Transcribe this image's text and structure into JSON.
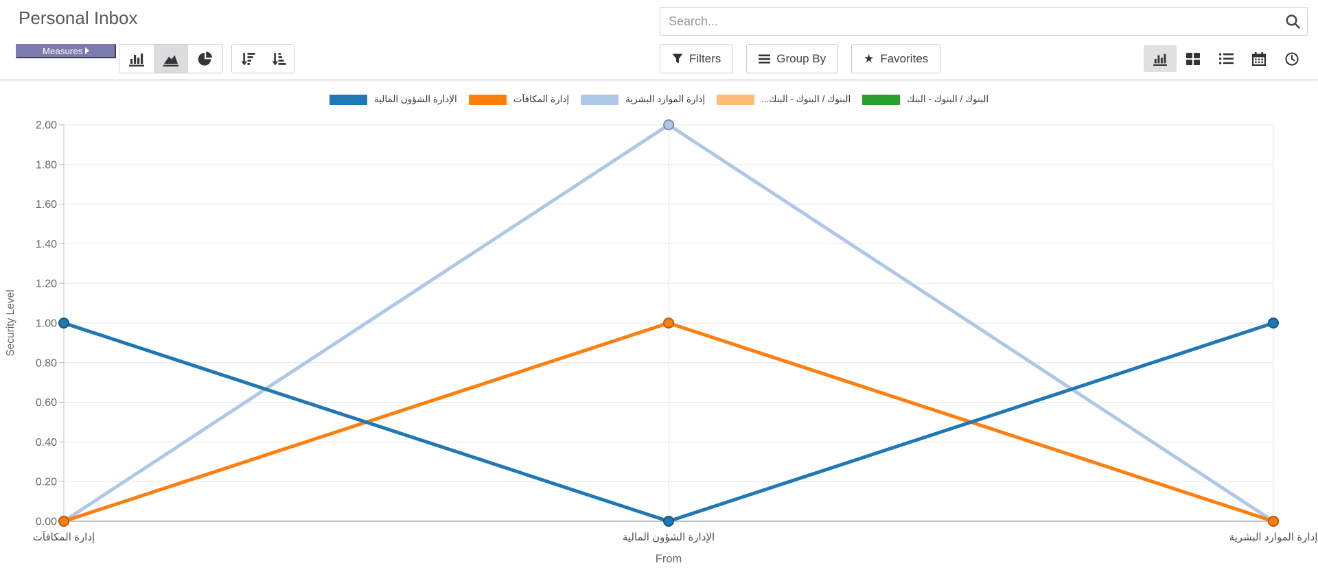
{
  "header": {
    "title": "Personal Inbox",
    "search_placeholder": "Search..."
  },
  "toolbar": {
    "measures_label": "Measures",
    "filters_label": "Filters",
    "group_by_label": "Group By",
    "favorites_label": "Favorites",
    "accent_color": "#7c7bad",
    "chart_type_buttons": [
      {
        "name": "bar",
        "active": false
      },
      {
        "name": "area",
        "active": true
      },
      {
        "name": "pie",
        "active": false
      }
    ],
    "sort_buttons": [
      {
        "name": "sort-descending"
      },
      {
        "name": "sort-ascending"
      }
    ],
    "view_switcher": [
      {
        "name": "graph",
        "active": true
      },
      {
        "name": "kanban",
        "active": false
      },
      {
        "name": "list",
        "active": false
      },
      {
        "name": "calendar",
        "active": false
      },
      {
        "name": "activity",
        "active": false
      }
    ]
  },
  "chart_data": {
    "type": "line",
    "title": "",
    "xlabel": "From",
    "ylabel": "Security Level",
    "categories": [
      "إدارة المكافآت",
      "الإدارة الشؤون المالية",
      "إدارة الموارد البشرية"
    ],
    "ylim": [
      0,
      2
    ],
    "y_tick_step": 0.2,
    "grid": true,
    "legend_position": "top",
    "series": [
      {
        "name": "الإدارة الشؤون المالية",
        "color": "#1f77b4",
        "values": [
          1,
          0,
          1
        ]
      },
      {
        "name": "إدارة المكافآت",
        "color": "#ff7f0e",
        "values": [
          0,
          1,
          0
        ]
      },
      {
        "name": "إدارة الموارد البشرية",
        "color": "#aec7e8",
        "values": [
          0,
          2,
          0
        ]
      },
      {
        "name": "البنوك / البنوك - البنك...",
        "color": "#ffbb78",
        "values": []
      },
      {
        "name": "البنوك / البنوك - البنك",
        "color": "#2ca02c",
        "values": []
      }
    ]
  }
}
